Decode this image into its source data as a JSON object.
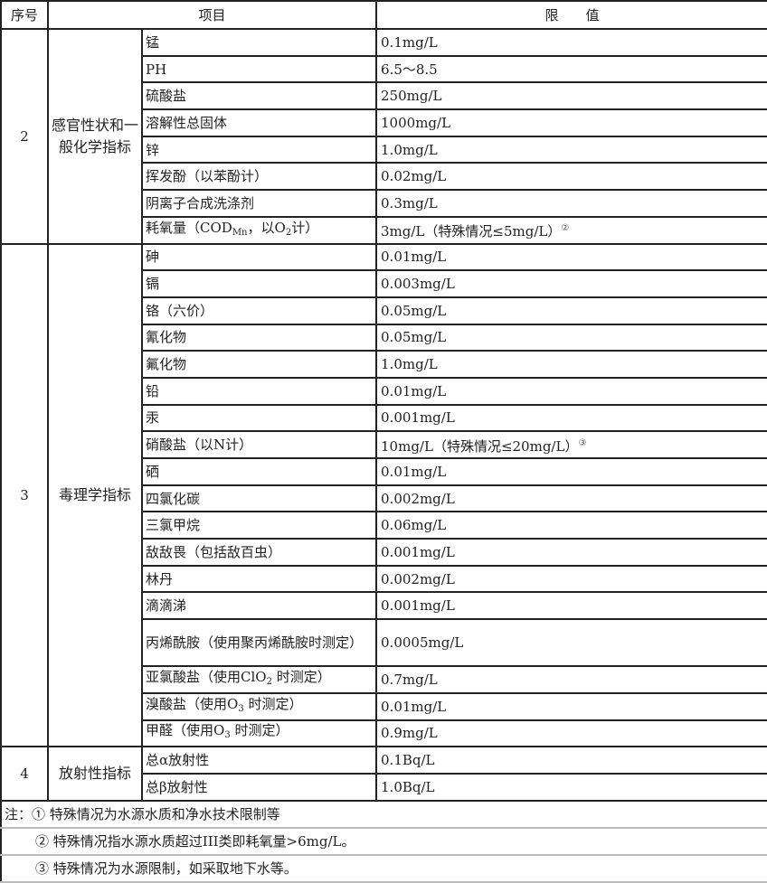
{
  "header": {
    "no": "序号",
    "item": "项目",
    "limit": "限　　值"
  },
  "groups": [
    {
      "no": "2",
      "category": "感官性状和一般化学指标",
      "rows": [
        {
          "item": [
            {
              "t": "锰"
            }
          ],
          "value": [
            {
              "t": "0.1mg/L"
            }
          ]
        },
        {
          "item": [
            {
              "t": "PH"
            }
          ],
          "value": [
            {
              "t": "6.5～8.5"
            }
          ]
        },
        {
          "item": [
            {
              "t": "硫酸盐"
            }
          ],
          "value": [
            {
              "t": "250mg/L"
            }
          ]
        },
        {
          "item": [
            {
              "t": "溶解性总固体"
            }
          ],
          "value": [
            {
              "t": "1000mg/L"
            }
          ]
        },
        {
          "item": [
            {
              "t": "锌"
            }
          ],
          "value": [
            {
              "t": "1.0mg/L"
            }
          ]
        },
        {
          "item": [
            {
              "t": "挥发酚（以苯酚计）"
            }
          ],
          "value": [
            {
              "t": "0.02mg/L"
            }
          ]
        },
        {
          "item": [
            {
              "t": "阴离子合成洗涤剂"
            }
          ],
          "value": [
            {
              "t": "0.3mg/L"
            }
          ]
        },
        {
          "item": [
            {
              "t": "耗氧量（COD"
            },
            {
              "sub": "Mn"
            },
            {
              "t": "，以O"
            },
            {
              "sub": "2"
            },
            {
              "t": "计）"
            }
          ],
          "value": [
            {
              "t": "3mg/L（特殊情况≤5mg/L）"
            },
            {
              "sup": "②"
            }
          ]
        }
      ]
    },
    {
      "no": "3",
      "category": "毒理学指标",
      "rows": [
        {
          "item": [
            {
              "t": "砷"
            }
          ],
          "value": [
            {
              "t": "0.01mg/L"
            }
          ]
        },
        {
          "item": [
            {
              "t": "镉"
            }
          ],
          "value": [
            {
              "t": "0.003mg/L"
            }
          ]
        },
        {
          "item": [
            {
              "t": "铬（六价）"
            }
          ],
          "value": [
            {
              "t": "0.05mg/L"
            }
          ]
        },
        {
          "item": [
            {
              "t": "氰化物"
            }
          ],
          "value": [
            {
              "t": "0.05mg/L"
            }
          ]
        },
        {
          "item": [
            {
              "t": "氟化物"
            }
          ],
          "value": [
            {
              "t": "1.0mg/L"
            }
          ]
        },
        {
          "item": [
            {
              "t": "铅"
            }
          ],
          "value": [
            {
              "t": "0.01mg/L"
            }
          ]
        },
        {
          "item": [
            {
              "t": "汞"
            }
          ],
          "value": [
            {
              "t": "0.001mg/L"
            }
          ]
        },
        {
          "item": [
            {
              "t": "硝酸盐（以N计）"
            }
          ],
          "value": [
            {
              "t": "10mg/L（特殊情况≤20mg/L）"
            },
            {
              "sup": "③"
            }
          ]
        },
        {
          "item": [
            {
              "t": "硒"
            }
          ],
          "value": [
            {
              "t": "0.01mg/L"
            }
          ]
        },
        {
          "item": [
            {
              "t": "四氯化碳"
            }
          ],
          "value": [
            {
              "t": "0.002mg/L"
            }
          ]
        },
        {
          "item": [
            {
              "t": "三氯甲烷"
            }
          ],
          "value": [
            {
              "t": "0.06mg/L"
            }
          ]
        },
        {
          "item": [
            {
              "t": "敌敌畏（包括敌百虫）"
            }
          ],
          "value": [
            {
              "t": "0.001mg/L"
            }
          ]
        },
        {
          "item": [
            {
              "t": "林丹"
            }
          ],
          "value": [
            {
              "t": "0.002mg/L"
            }
          ]
        },
        {
          "item": [
            {
              "t": "滴滴涕"
            }
          ],
          "value": [
            {
              "t": "0.001mg/L"
            }
          ]
        },
        {
          "item": [
            {
              "t": "丙烯酰胺（使用聚丙烯酰胺时测定）"
            }
          ],
          "value": [
            {
              "t": "0.0005mg/L"
            }
          ],
          "tall": true
        },
        {
          "item": [
            {
              "t": "亚氯酸盐（使用ClO"
            },
            {
              "sub": "2"
            },
            {
              "t": " 时测定）"
            }
          ],
          "value": [
            {
              "t": "0.7mg/L"
            }
          ]
        },
        {
          "item": [
            {
              "t": "溴酸盐（使用O"
            },
            {
              "sub": "3"
            },
            {
              "t": " 时测定）"
            }
          ],
          "value": [
            {
              "t": "0.01mg/L"
            }
          ]
        },
        {
          "item": [
            {
              "t": "甲醛（使用O"
            },
            {
              "sub": "3"
            },
            {
              "t": " 时测定）"
            }
          ],
          "value": [
            {
              "t": "0.9mg/L"
            }
          ]
        }
      ]
    },
    {
      "no": "4",
      "category": "放射性指标",
      "rows": [
        {
          "item": [
            {
              "t": "总α放射性"
            }
          ],
          "value": [
            {
              "t": "0.1Bq/L"
            }
          ]
        },
        {
          "item": [
            {
              "t": "总β放射性"
            }
          ],
          "value": [
            {
              "t": "1.0Bq/L"
            }
          ]
        }
      ]
    }
  ],
  "notes": {
    "label": "注：",
    "items": [
      "① 特殊情况为水源水质和净水技术限制等",
      "② 特殊情况指水源水质超过III类即耗氧量>6mg/L。",
      "③ 特殊情况为水源限制，如采取地下水等。"
    ]
  }
}
